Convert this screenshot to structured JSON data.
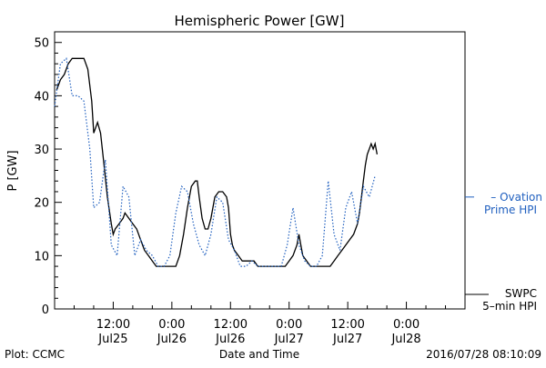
{
  "chart_data": {
    "type": "line",
    "title": "Hemispheric Power [GW]",
    "xlabel": "Date and Time",
    "ylabel": "P [GW]",
    "xlim": [
      0,
      21
    ],
    "ylim": [
      0,
      52
    ],
    "grid": false,
    "y_ticks": [
      0,
      10,
      20,
      30,
      40,
      50
    ],
    "x_ticks": [
      {
        "x": 3,
        "line1": "12:00",
        "line2": "Jul25"
      },
      {
        "x": 6,
        "line1": "0:00",
        "line2": "Jul26"
      },
      {
        "x": 9,
        "line1": "12:00",
        "line2": "Jul26"
      },
      {
        "x": 12,
        "line1": "0:00",
        "line2": "Jul27"
      },
      {
        "x": 15,
        "line1": "12:00",
        "line2": "Jul27"
      },
      {
        "x": 18,
        "line1": "0:00",
        "line2": "Jul28"
      }
    ],
    "series": [
      {
        "name": "SWPC 5-min HPI",
        "label_lines": [
          "SWPC",
          "5–min HPI"
        ],
        "style": "solid",
        "color": "#000000",
        "points": [
          [
            0.1,
            41
          ],
          [
            0.3,
            43
          ],
          [
            0.5,
            44
          ],
          [
            0.7,
            46
          ],
          [
            0.9,
            47
          ],
          [
            1.1,
            47
          ],
          [
            1.3,
            47
          ],
          [
            1.5,
            47
          ],
          [
            1.7,
            45
          ],
          [
            1.9,
            39
          ],
          [
            2.0,
            33
          ],
          [
            2.2,
            35
          ],
          [
            2.35,
            33
          ],
          [
            2.5,
            28
          ],
          [
            2.7,
            21
          ],
          [
            2.9,
            16
          ],
          [
            3.0,
            14
          ],
          [
            3.1,
            15
          ],
          [
            3.3,
            16
          ],
          [
            3.5,
            17
          ],
          [
            3.6,
            18
          ],
          [
            3.8,
            17
          ],
          [
            4.0,
            16
          ],
          [
            4.2,
            15
          ],
          [
            4.4,
            13
          ],
          [
            4.6,
            11
          ],
          [
            4.8,
            10
          ],
          [
            5.0,
            9
          ],
          [
            5.2,
            8
          ],
          [
            5.4,
            8
          ],
          [
            5.6,
            8
          ],
          [
            5.8,
            8
          ],
          [
            6.0,
            8
          ],
          [
            6.2,
            8
          ],
          [
            6.4,
            10
          ],
          [
            6.6,
            14
          ],
          [
            6.8,
            19
          ],
          [
            7.0,
            23
          ],
          [
            7.2,
            24
          ],
          [
            7.3,
            24
          ],
          [
            7.4,
            21
          ],
          [
            7.55,
            17
          ],
          [
            7.7,
            15
          ],
          [
            7.85,
            15
          ],
          [
            8.0,
            17
          ],
          [
            8.2,
            21
          ],
          [
            8.4,
            22
          ],
          [
            8.6,
            22
          ],
          [
            8.8,
            21
          ],
          [
            8.9,
            19
          ],
          [
            9.0,
            14
          ],
          [
            9.1,
            12
          ],
          [
            9.2,
            11
          ],
          [
            9.4,
            10
          ],
          [
            9.6,
            9
          ],
          [
            9.8,
            9
          ],
          [
            10.0,
            9
          ],
          [
            10.2,
            9
          ],
          [
            10.4,
            8
          ],
          [
            10.6,
            8
          ],
          [
            10.8,
            8
          ],
          [
            11.0,
            8
          ],
          [
            11.2,
            8
          ],
          [
            11.4,
            8
          ],
          [
            11.6,
            8
          ],
          [
            11.8,
            8
          ],
          [
            12.0,
            9
          ],
          [
            12.2,
            10
          ],
          [
            12.4,
            12
          ],
          [
            12.5,
            14
          ],
          [
            12.6,
            12
          ],
          [
            12.7,
            10
          ],
          [
            12.9,
            9
          ],
          [
            13.1,
            8
          ],
          [
            13.3,
            8
          ],
          [
            13.5,
            8
          ],
          [
            13.7,
            8
          ],
          [
            13.9,
            8
          ],
          [
            14.1,
            8
          ],
          [
            14.3,
            9
          ],
          [
            14.5,
            10
          ],
          [
            14.7,
            11
          ],
          [
            14.9,
            12
          ],
          [
            15.1,
            13
          ],
          [
            15.3,
            14
          ],
          [
            15.5,
            16
          ],
          [
            15.6,
            18
          ],
          [
            15.7,
            21
          ],
          [
            15.8,
            24
          ],
          [
            15.9,
            27
          ],
          [
            16.0,
            29
          ],
          [
            16.1,
            30
          ],
          [
            16.2,
            31
          ],
          [
            16.3,
            30
          ],
          [
            16.4,
            31
          ],
          [
            16.5,
            29
          ]
        ]
      },
      {
        "name": "Ovation Prime HPI",
        "label_lines": [
          "– Ovation",
          "Prime HPI"
        ],
        "style": "dotted",
        "color": "#1f5fbf",
        "points": [
          [
            0,
            38
          ],
          [
            0.3,
            46
          ],
          [
            0.6,
            47
          ],
          [
            0.9,
            40
          ],
          [
            1.2,
            40
          ],
          [
            1.5,
            39
          ],
          [
            1.8,
            30
          ],
          [
            2.0,
            19
          ],
          [
            2.3,
            20
          ],
          [
            2.6,
            28
          ],
          [
            2.9,
            12
          ],
          [
            3.2,
            10
          ],
          [
            3.5,
            23
          ],
          [
            3.8,
            21
          ],
          [
            4.1,
            10
          ],
          [
            4.4,
            13
          ],
          [
            4.7,
            11
          ],
          [
            5.0,
            10
          ],
          [
            5.3,
            8
          ],
          [
            5.6,
            8
          ],
          [
            5.9,
            10
          ],
          [
            6.2,
            18
          ],
          [
            6.5,
            23
          ],
          [
            6.8,
            22
          ],
          [
            7.1,
            16
          ],
          [
            7.4,
            12
          ],
          [
            7.7,
            10
          ],
          [
            8.0,
            14
          ],
          [
            8.3,
            21
          ],
          [
            8.6,
            20
          ],
          [
            8.9,
            13
          ],
          [
            9.2,
            11
          ],
          [
            9.5,
            8
          ],
          [
            9.8,
            8
          ],
          [
            10.1,
            9
          ],
          [
            10.4,
            8
          ],
          [
            10.7,
            8
          ],
          [
            11.0,
            8
          ],
          [
            11.3,
            8
          ],
          [
            11.6,
            8
          ],
          [
            11.9,
            12
          ],
          [
            12.2,
            19
          ],
          [
            12.5,
            12
          ],
          [
            12.8,
            9
          ],
          [
            13.1,
            8
          ],
          [
            13.4,
            8
          ],
          [
            13.7,
            10
          ],
          [
            14.0,
            24
          ],
          [
            14.3,
            14
          ],
          [
            14.6,
            11
          ],
          [
            14.9,
            19
          ],
          [
            15.2,
            22
          ],
          [
            15.5,
            16
          ],
          [
            15.8,
            23
          ],
          [
            16.1,
            21
          ],
          [
            16.4,
            25
          ]
        ]
      }
    ]
  },
  "footer": {
    "plot_credit": "Plot: CCMC",
    "timestamp": "2016/07/28 08:10:09"
  }
}
